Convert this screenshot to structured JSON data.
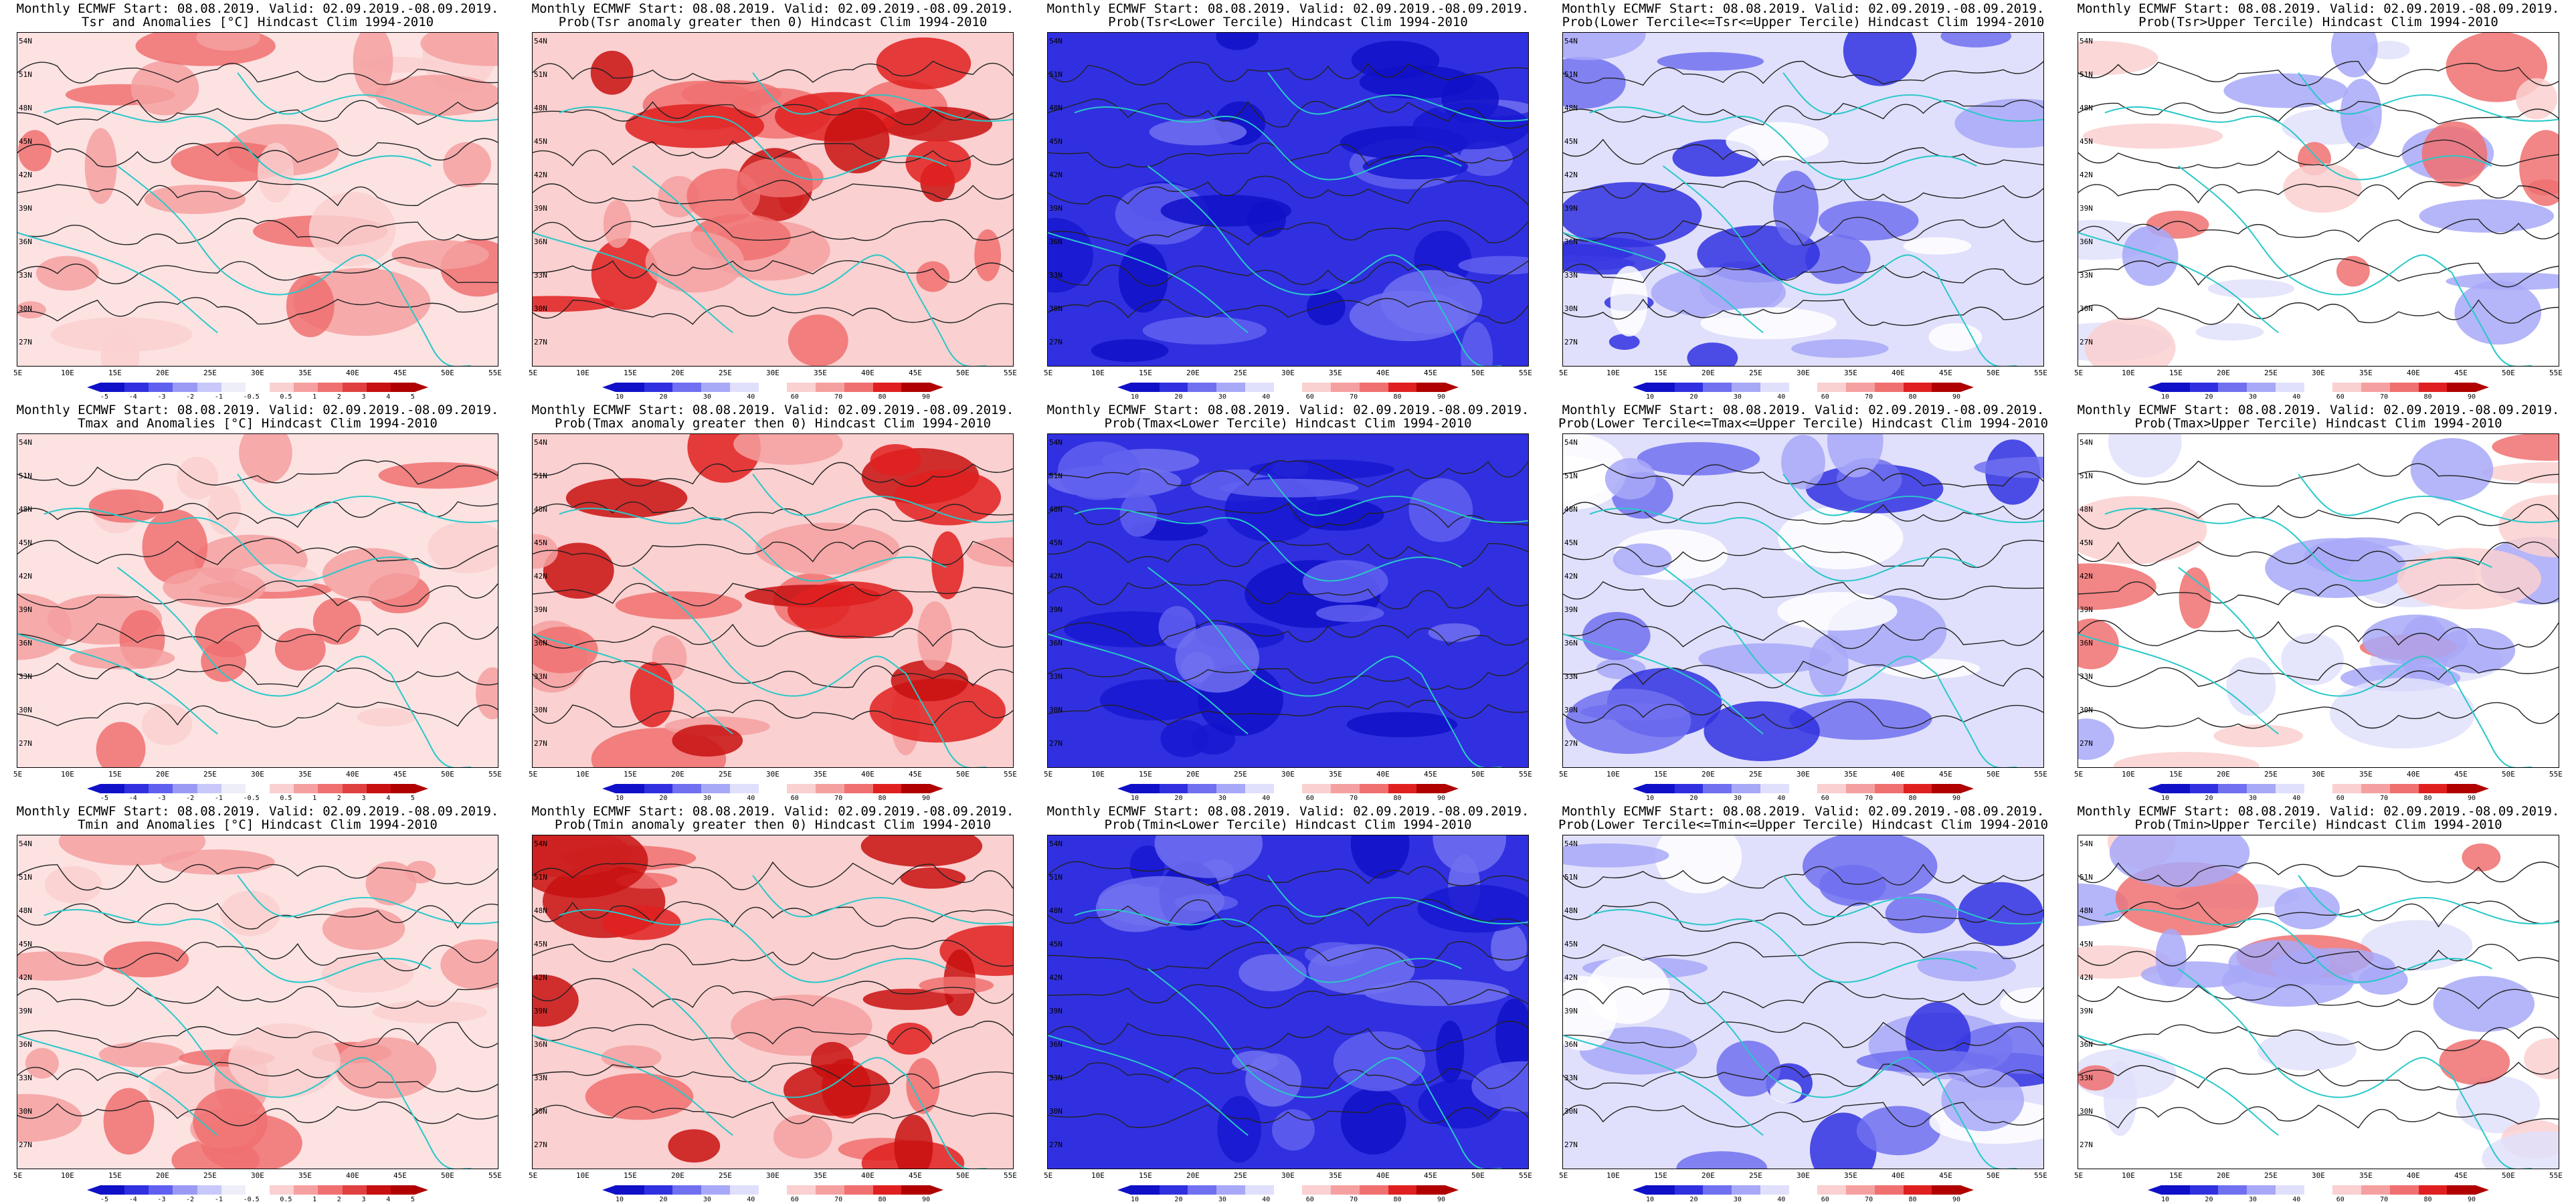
{
  "header": "Monthly ECMWF Start: 08.08.2019. Valid: 02.09.2019.-08.09.2019.",
  "colors": {
    "coast": "#28c8c8",
    "contour": "#222222",
    "anomaly_scale": [
      "#1010c8",
      "#3030e0",
      "#6060f0",
      "#9a9af5",
      "#c8c8fa",
      "#eeeef8",
      "#ffffff",
      "#fad0d0",
      "#f5a0a0",
      "#f07070",
      "#e04040",
      "#c81010",
      "#b00000"
    ],
    "prob_scale": [
      "#1010c8",
      "#3030e0",
      "#7070f0",
      "#a8a8f8",
      "#e0e0fc",
      "#ffffff",
      "#fad0d0",
      "#f5a0a0",
      "#f07070",
      "#e02020",
      "#b00000"
    ]
  },
  "lat_labels": [
    "54N",
    "51N",
    "48N",
    "45N",
    "42N",
    "39N",
    "36N",
    "33N",
    "30N",
    "27N"
  ],
  "lon_labels": [
    "5E",
    "10E",
    "15E",
    "20E",
    "25E",
    "30E",
    "35E",
    "40E",
    "45E",
    "50E",
    "55E"
  ],
  "anomaly_ticks": [
    "-5",
    "-4",
    "-3",
    "-2",
    "-1",
    "-0.5",
    "0.5",
    "1",
    "2",
    "3",
    "4",
    "5"
  ],
  "prob_ticks": [
    "10",
    "20",
    "30",
    "40",
    "60",
    "70",
    "80",
    "90"
  ],
  "panels": [
    {
      "subtitle": "Tsr and Anomalies [°C] Hindcast Clim 1994-2010",
      "kind": "anom"
    },
    {
      "subtitle": "Prob(Tsr anomaly greater then 0) Hindcast Clim 1994-2010",
      "kind": "warm"
    },
    {
      "subtitle": "Prob(Tsr<Lower Tercile) Hindcast Clim 1994-2010",
      "kind": "cold"
    },
    {
      "subtitle": "Prob(Lower Tercile<=Tsr<=Upper Tercile) Hindcast Clim 1994-2010",
      "kind": "mid"
    },
    {
      "subtitle": "Prob(Tsr>Upper Tercile) Hindcast Clim 1994-2010",
      "kind": "upper"
    },
    {
      "subtitle": "Tmax and Anomalies [°C] Hindcast Clim 1994-2010",
      "kind": "anom"
    },
    {
      "subtitle": "Prob(Tmax anomaly greater then 0) Hindcast Clim 1994-2010",
      "kind": "warm"
    },
    {
      "subtitle": "Prob(Tmax<Lower Tercile) Hindcast Clim 1994-2010",
      "kind": "cold"
    },
    {
      "subtitle": "Prob(Lower Tercile<=Tmax<=Upper Tercile) Hindcast Clim 1994-2010",
      "kind": "mid"
    },
    {
      "subtitle": "Prob(Tmax>Upper Tercile) Hindcast Clim 1994-2010",
      "kind": "upper"
    },
    {
      "subtitle": "Tmin and Anomalies [°C] Hindcast Clim 1994-2010",
      "kind": "anom"
    },
    {
      "subtitle": "Prob(Tmin anomaly greater then 0) Hindcast Clim 1994-2010",
      "kind": "warm"
    },
    {
      "subtitle": "Prob(Tmin<Lower Tercile) Hindcast Clim 1994-2010",
      "kind": "cold"
    },
    {
      "subtitle": "Prob(Lower Tercile<=Tmin<=Upper Tercile) Hindcast Clim 1994-2010",
      "kind": "mid"
    },
    {
      "subtitle": "Prob(Tmin>Upper Tercile) Hindcast Clim 1994-2010",
      "kind": "upper"
    }
  ]
}
